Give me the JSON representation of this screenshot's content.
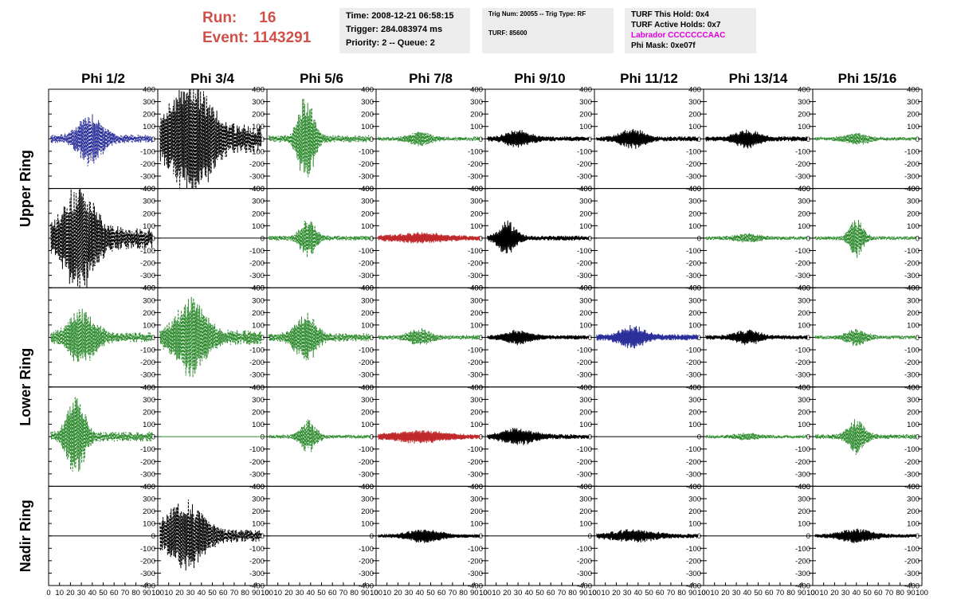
{
  "header": {
    "run_label": "Run:",
    "run_value": "16",
    "event_label": "Event:",
    "event_value": "1143291",
    "time": "Time: 2008-12-21 06:58:15",
    "trigger": "Trigger: 284.083974 ms",
    "priority": "Priority: 2 -- Queue: 2",
    "trig_num": "Trig Num: 20055 -- Trig Type: RF",
    "turf": "TURF: 85600",
    "turf_hold": "TURF This Hold: 0x4",
    "turf_active": "TURF Active Holds: 0x7",
    "labrador": "Labrador CCCCCCCAAC",
    "phi_mask": "Phi Mask: 0xe07f"
  },
  "colors": {
    "run": "#d05048",
    "box_bg": "#ececec",
    "labrador": "#e000e0",
    "wave_black": "#000000",
    "wave_green": "#2e8b2e",
    "wave_blue": "#2a2f9a",
    "wave_red": "#c0282a"
  },
  "chart_data": {
    "type": "line",
    "columns": [
      "Phi 1/2",
      "Phi 3/4",
      "Phi 5/6",
      "Phi 7/8",
      "Phi 9/10",
      "Phi 11/12",
      "Phi 13/14",
      "Phi 15/16"
    ],
    "rows": [
      "Upper Ring",
      "Upper Ring",
      "Lower Ring",
      "Lower Ring",
      "Nadir Ring"
    ],
    "row_labels": [
      {
        "label": "Upper Ring",
        "rows": [
          0,
          1
        ]
      },
      {
        "label": "Lower Ring",
        "rows": [
          2,
          3
        ]
      },
      {
        "label": "Nadir Ring",
        "rows": [
          4
        ]
      }
    ],
    "xlim": [
      0,
      100
    ],
    "ylim": [
      -400,
      400
    ],
    "y_ticks": [
      400,
      300,
      200,
      100,
      0,
      -100,
      -200,
      -300,
      -400
    ],
    "x_ticks": [
      0,
      10,
      20,
      30,
      40,
      50,
      60,
      70,
      80,
      90,
      100
    ],
    "grid": false,
    "panels": [
      [
        {
          "color": "blue",
          "style": "dashed",
          "peak": 40,
          "center": 38,
          "spread": 14,
          "amp": 200,
          "noise": 35
        },
        {
          "color": "black",
          "style": "dashed",
          "peak": 30,
          "center": 30,
          "spread": 22,
          "amp": 400,
          "noise": 120
        },
        {
          "color": "green",
          "style": "dashed",
          "peak": 40,
          "center": 36,
          "spread": 9,
          "amp": 350,
          "noise": 30
        },
        {
          "color": "green",
          "style": "dashed",
          "peak": 40,
          "center": 40,
          "spread": 12,
          "amp": 50,
          "noise": 18
        },
        {
          "color": "black",
          "style": "solid",
          "peak": 30,
          "center": 30,
          "spread": 14,
          "amp": 60,
          "noise": 20
        },
        {
          "color": "black",
          "style": "solid",
          "peak": 35,
          "center": 35,
          "spread": 14,
          "amp": 70,
          "noise": 20
        },
        {
          "color": "black",
          "style": "solid",
          "peak": 40,
          "center": 40,
          "spread": 14,
          "amp": 60,
          "noise": 20
        },
        {
          "color": "green",
          "style": "dashed",
          "peak": 40,
          "center": 40,
          "spread": 14,
          "amp": 40,
          "noise": 15
        }
      ],
      [
        {
          "color": "black",
          "style": "dashed",
          "peak": 30,
          "center": 28,
          "spread": 18,
          "amp": 380,
          "noise": 90
        },
        {
          "color": "black",
          "style": "flat",
          "peak": 0,
          "center": 0,
          "spread": 1,
          "amp": 0,
          "noise": 0
        },
        {
          "color": "green",
          "style": "dashed",
          "peak": 40,
          "center": 38,
          "spread": 9,
          "amp": 150,
          "noise": 20
        },
        {
          "color": "red",
          "style": "solid",
          "peak": 40,
          "center": 40,
          "spread": 30,
          "amp": 30,
          "noise": 20
        },
        {
          "color": "black",
          "style": "solid",
          "peak": 20,
          "center": 20,
          "spread": 10,
          "amp": 130,
          "noise": 20
        },
        {
          "color": "black",
          "style": "flat",
          "peak": 0,
          "center": 0,
          "spread": 1,
          "amp": 0,
          "noise": 0
        },
        {
          "color": "green",
          "style": "dashed",
          "peak": 40,
          "center": 40,
          "spread": 14,
          "amp": 30,
          "noise": 15
        },
        {
          "color": "green",
          "style": "dashed",
          "peak": 40,
          "center": 40,
          "spread": 8,
          "amp": 150,
          "noise": 15
        }
      ],
      [
        {
          "color": "green",
          "style": "dashed",
          "peak": 40,
          "center": 30,
          "spread": 16,
          "amp": 200,
          "noise": 40
        },
        {
          "color": "green",
          "style": "dashed",
          "peak": 40,
          "center": 30,
          "spread": 18,
          "amp": 290,
          "noise": 60
        },
        {
          "color": "green",
          "style": "dashed",
          "peak": 40,
          "center": 35,
          "spread": 12,
          "amp": 200,
          "noise": 35
        },
        {
          "color": "green",
          "style": "dashed",
          "peak": 40,
          "center": 40,
          "spread": 12,
          "amp": 60,
          "noise": 20
        },
        {
          "color": "black",
          "style": "solid",
          "peak": 30,
          "center": 30,
          "spread": 14,
          "amp": 50,
          "noise": 18
        },
        {
          "color": "blue",
          "style": "solid",
          "peak": 35,
          "center": 35,
          "spread": 14,
          "amp": 80,
          "noise": 25
        },
        {
          "color": "black",
          "style": "solid",
          "peak": 40,
          "center": 40,
          "spread": 14,
          "amp": 50,
          "noise": 18
        },
        {
          "color": "green",
          "style": "dashed",
          "peak": 40,
          "center": 40,
          "spread": 12,
          "amp": 60,
          "noise": 15
        }
      ],
      [
        {
          "color": "green",
          "style": "dashed",
          "peak": 30,
          "center": 25,
          "spread": 10,
          "amp": 320,
          "noise": 40
        },
        {
          "color": "green",
          "style": "flat",
          "peak": 0,
          "center": 0,
          "spread": 1,
          "amp": 0,
          "noise": 0
        },
        {
          "color": "green",
          "style": "dashed",
          "peak": 40,
          "center": 38,
          "spread": 9,
          "amp": 130,
          "noise": 15
        },
        {
          "color": "red",
          "style": "solid",
          "peak": 40,
          "center": 40,
          "spread": 30,
          "amp": 40,
          "noise": 20
        },
        {
          "color": "black",
          "style": "solid",
          "peak": 30,
          "center": 30,
          "spread": 18,
          "amp": 60,
          "noise": 20
        },
        {
          "color": "black",
          "style": "flat",
          "peak": 0,
          "center": 0,
          "spread": 1,
          "amp": 0,
          "noise": 0
        },
        {
          "color": "green",
          "style": "dashed",
          "peak": 40,
          "center": 40,
          "spread": 14,
          "amp": 25,
          "noise": 12
        },
        {
          "color": "green",
          "style": "dashed",
          "peak": 40,
          "center": 40,
          "spread": 10,
          "amp": 130,
          "noise": 20
        }
      ],
      [
        {
          "color": "black",
          "style": "flat",
          "peak": 0,
          "center": 0,
          "spread": 1,
          "amp": 0,
          "noise": 0
        },
        {
          "color": "black",
          "style": "dashed",
          "peak": 30,
          "center": 25,
          "spread": 22,
          "amp": 260,
          "noise": 50
        },
        {
          "color": "black",
          "style": "flat",
          "peak": 0,
          "center": 0,
          "spread": 1,
          "amp": 0,
          "noise": 0
        },
        {
          "color": "black",
          "style": "solid",
          "peak": 40,
          "center": 45,
          "spread": 18,
          "amp": 50,
          "noise": 15
        },
        {
          "color": "black",
          "style": "flat",
          "peak": 0,
          "center": 0,
          "spread": 1,
          "amp": 0,
          "noise": 0
        },
        {
          "color": "black",
          "style": "solid",
          "peak": 35,
          "center": 35,
          "spread": 25,
          "amp": 40,
          "noise": 18
        },
        {
          "color": "black",
          "style": "flat",
          "peak": 0,
          "center": 0,
          "spread": 1,
          "amp": 0,
          "noise": 0
        },
        {
          "color": "black",
          "style": "solid",
          "peak": 40,
          "center": 40,
          "spread": 18,
          "amp": 50,
          "noise": 15
        }
      ]
    ]
  }
}
